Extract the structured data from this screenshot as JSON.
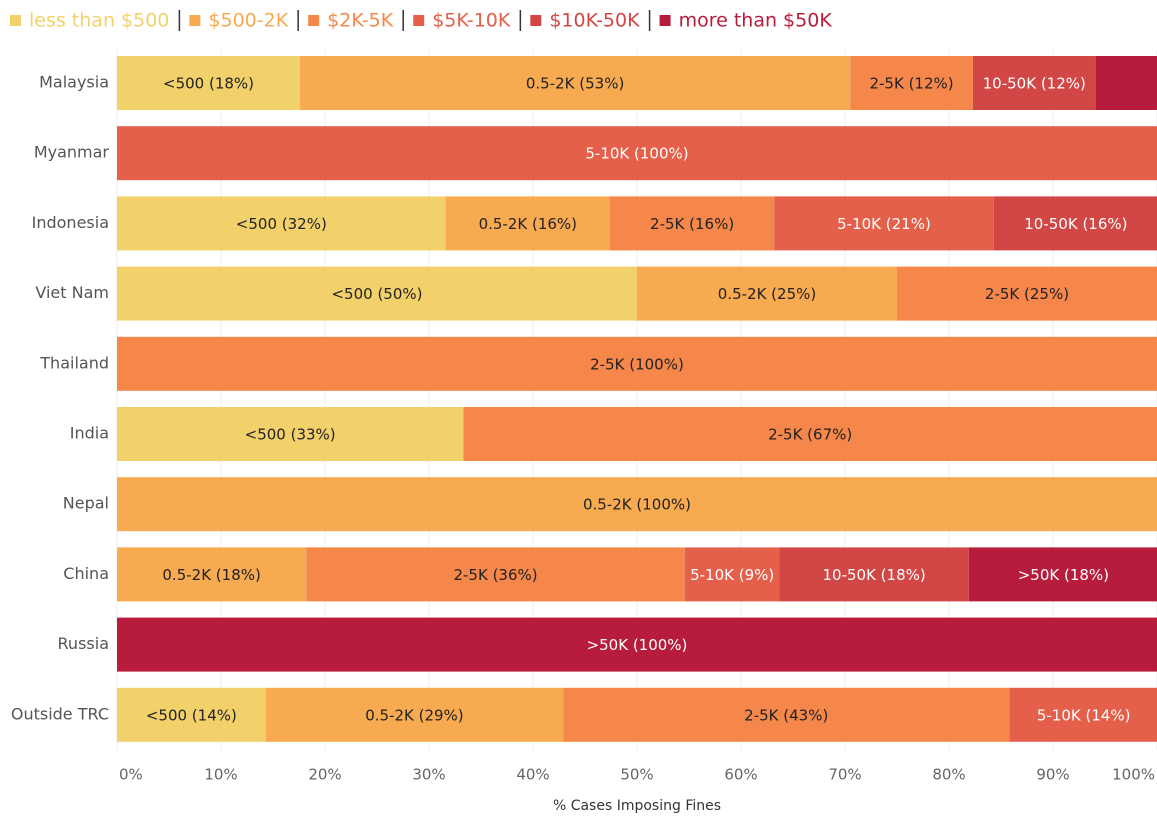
{
  "chart_data": {
    "type": "stacked-bar-horizontal",
    "categories": [
      "Malaysia",
      "Myanmar",
      "Indonesia",
      "Viet Nam",
      "Thailand",
      "India",
      "Nepal",
      "China",
      "Russia",
      "Outside TRC"
    ],
    "series": [
      {
        "name": "less than $500",
        "color": "#f2d16b",
        "values": [
          17.6,
          null,
          31.6,
          50,
          null,
          33.3,
          null,
          null,
          null,
          14.3
        ],
        "value_labels": [
          "<500 (18%)",
          null,
          "<500 (32%)",
          "<500 (50%)",
          null,
          "<500 (33%)",
          null,
          null,
          null,
          "<500 (14%)"
        ]
      },
      {
        "name": "$500-2K",
        "color": "#f7aa50",
        "values": [
          52.9,
          null,
          15.8,
          25,
          null,
          null,
          100,
          18.2,
          null,
          28.6
        ],
        "value_labels": [
          "0.5-2K (53%)",
          null,
          "0.5-2K (16%)",
          "0.5-2K (25%)",
          null,
          null,
          "0.5-2K (100%)",
          "0.5-2K (18%)",
          null,
          "0.5-2K (29%)"
        ]
      },
      {
        "name": "$2K-5K",
        "color": "#f5874b",
        "values": [
          11.8,
          null,
          15.8,
          25,
          100,
          66.7,
          null,
          36.4,
          null,
          42.9
        ],
        "value_labels": [
          "2-5K (12%)",
          null,
          "2-5K (16%)",
          "2-5K (25%)",
          "2-5K (100%)",
          "2-5K (67%)",
          null,
          "2-5K (36%)",
          null,
          "2-5K (43%)"
        ]
      },
      {
        "name": "$5K-10K",
        "color": "#e4604a",
        "values": [
          null,
          100,
          21.1,
          null,
          null,
          null,
          null,
          9.1,
          null,
          14.3
        ],
        "value_labels": [
          null,
          "5-10K (100%)",
          "5-10K (21%)",
          null,
          null,
          null,
          null,
          "5-10K (9%)",
          null,
          "5-10K (14%)"
        ]
      },
      {
        "name": "$10K-50K",
        "color": "#d24745",
        "values": [
          11.8,
          null,
          15.8,
          null,
          null,
          null,
          null,
          18.2,
          null,
          null
        ],
        "value_labels": [
          "10-50K (12%)",
          null,
          "10-50K (16%)",
          null,
          null,
          null,
          null,
          "10-50K (18%)",
          null,
          null
        ]
      },
      {
        "name": "more than $50K",
        "color": "#b81c3d",
        "values": [
          5.9,
          null,
          null,
          null,
          null,
          null,
          null,
          18.2,
          100,
          null
        ],
        "value_labels": [
          null,
          null,
          null,
          null,
          null,
          null,
          null,
          ">50K (18%)",
          ">50K (100%)",
          null
        ]
      }
    ],
    "xlim": [
      0,
      100
    ],
    "xticks": [
      {
        "value": 0,
        "label": "0%"
      },
      {
        "value": 10,
        "label": "10%"
      },
      {
        "value": 20,
        "label": "20%"
      },
      {
        "value": 30,
        "label": "30%"
      },
      {
        "value": 40,
        "label": "40%"
      },
      {
        "value": 50,
        "label": "50%"
      },
      {
        "value": 60,
        "label": "60%"
      },
      {
        "value": 70,
        "label": "70%"
      },
      {
        "value": 80,
        "label": "80%"
      },
      {
        "value": 90,
        "label": "90%"
      },
      {
        "value": 100,
        "label": "100%"
      }
    ],
    "xlabel": "% Cases Imposing Fines",
    "grid": true,
    "legend": "top"
  }
}
